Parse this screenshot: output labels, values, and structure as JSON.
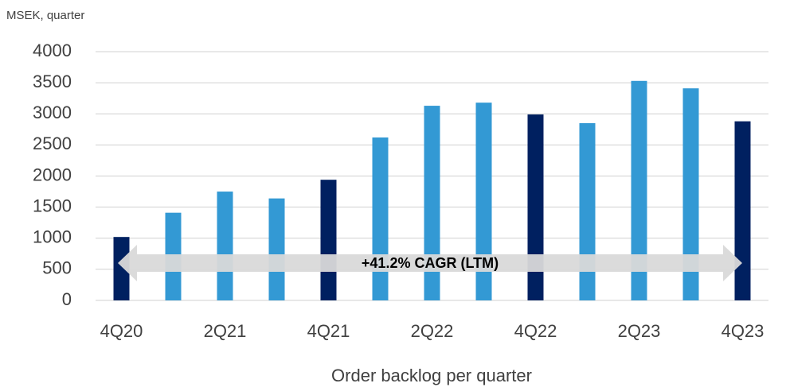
{
  "chart_data": {
    "type": "bar",
    "y_unit_label": "MSEK, quarter",
    "x_label": "Order backlog per quarter",
    "annotation": "+41.2% CAGR (LTM)",
    "categories": [
      "4Q20",
      null,
      "2Q21",
      null,
      "4Q21",
      null,
      "2Q22",
      null,
      "4Q22",
      null,
      "2Q23",
      null,
      "4Q23"
    ],
    "values": [
      1020,
      1410,
      1750,
      1640,
      1940,
      2620,
      3130,
      3180,
      2990,
      2850,
      3530,
      3410,
      2880
    ],
    "colors": [
      "#002060",
      "#3399d4",
      "#3399d4",
      "#3399d4",
      "#002060",
      "#3399d4",
      "#3399d4",
      "#3399d4",
      "#002060",
      "#3399d4",
      "#3399d4",
      "#3399d4",
      "#002060"
    ],
    "ylim": [
      0,
      4000
    ],
    "yticks": [
      0,
      500,
      1000,
      1500,
      2000,
      2500,
      3000,
      3500,
      4000
    ],
    "grid": true
  }
}
